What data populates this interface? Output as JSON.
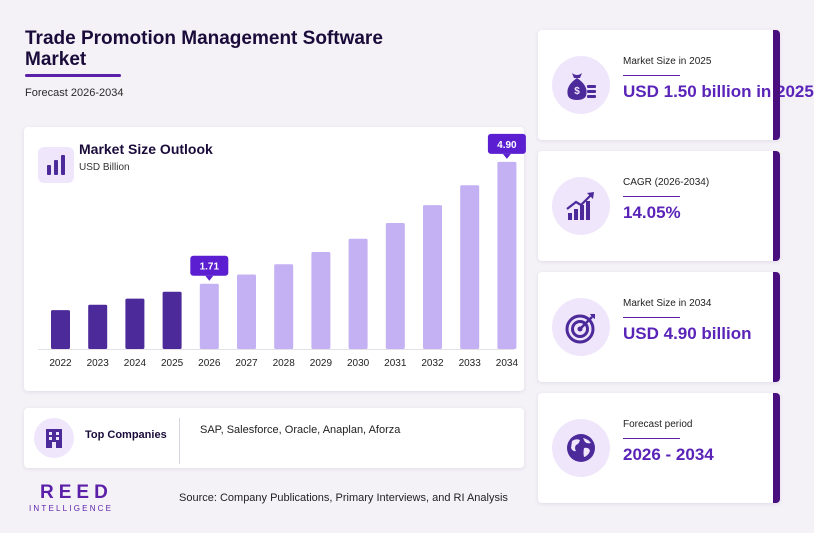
{
  "header": {
    "title": "Trade Promotion Management Software Market",
    "subtitle": "Forecast 2026-2034"
  },
  "chart_card": {
    "title": "Market Size Outlook",
    "unit": "USD Billion"
  },
  "chart_data": {
    "type": "bar",
    "categories": [
      "2022",
      "2023",
      "2024",
      "2025",
      "2026",
      "2027",
      "2028",
      "2029",
      "2030",
      "2031",
      "2032",
      "2033",
      "2034"
    ],
    "values": [
      1.02,
      1.16,
      1.32,
      1.5,
      1.71,
      1.95,
      2.22,
      2.54,
      2.89,
      3.3,
      3.77,
      4.29,
      4.9
    ],
    "data_labels": {
      "2026": "1.71",
      "2034": "4.90"
    },
    "historical_color": "#4c2a9a",
    "forecast_color": "#c4b1f3",
    "label_color": "#5b1fd1",
    "ylim": [
      0,
      5.5
    ],
    "grid": false,
    "title": "Market Size Outlook",
    "ylabel": "USD Billion",
    "xlabel": ""
  },
  "companies": {
    "label": "Top Companies",
    "list": "SAP, Salesforce, Oracle, Anaplan, Aforza"
  },
  "footer": {
    "logo_main": "REED",
    "logo_sub": "INTELLIGENCE",
    "source": "Source: Company Publications, Primary Interviews, and RI Analysis"
  },
  "stats": [
    {
      "label": "Market Size in 2025",
      "value": "USD 1.50 billion in 2025",
      "icon": "money-bag-icon"
    },
    {
      "label": "CAGR (2026-2034)",
      "value": "14.05%",
      "icon": "growth-chart-icon"
    },
    {
      "label": "Market Size in 2034",
      "value": "USD 4.90 billion",
      "icon": "target-icon"
    },
    {
      "label": "Forecast period",
      "value": "2026 - 2034",
      "icon": "globe-icon"
    }
  ],
  "colors": {
    "accent": "#5b1fa8",
    "value_text": "#5a24b9",
    "icon_bg": "#efe6fb"
  }
}
